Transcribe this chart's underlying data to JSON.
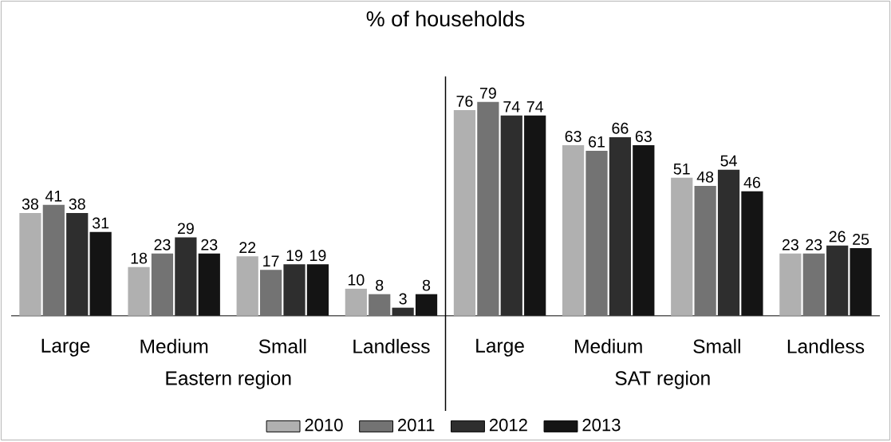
{
  "chart_data": {
    "type": "bar",
    "title": "% of households",
    "categories": [
      "Large",
      "Medium",
      "Small",
      "Landless",
      "Large",
      "Medium",
      "Small",
      "Landless"
    ],
    "annotations": [
      "Eastern region",
      "SAT region"
    ],
    "series": [
      {
        "name": "2010",
        "color": "#b0b0b0",
        "values": [
          38,
          18,
          22,
          10,
          76,
          63,
          51,
          23
        ]
      },
      {
        "name": "2011",
        "color": "#737373",
        "values": [
          41,
          23,
          17,
          8,
          79,
          61,
          48,
          23
        ]
      },
      {
        "name": "2012",
        "color": "#2e2e2e",
        "values": [
          38,
          29,
          19,
          3,
          74,
          66,
          54,
          26
        ]
      },
      {
        "name": "2013",
        "color": "#141414",
        "values": [
          31,
          23,
          19,
          8,
          74,
          63,
          46,
          25
        ]
      }
    ],
    "data_labels": true,
    "legend": "bottom"
  }
}
